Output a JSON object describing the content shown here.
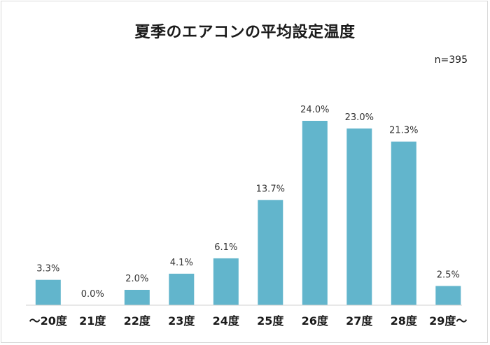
{
  "chart_data": {
    "type": "bar",
    "title": "夏季のエアコンの平均設定温度",
    "sample_size": "n=395",
    "categories": [
      "～20度",
      "21度",
      "22度",
      "23度",
      "24度",
      "25度",
      "26度",
      "27度",
      "28度",
      "29度～"
    ],
    "values": [
      3.3,
      0.0,
      2.0,
      4.1,
      6.1,
      13.7,
      24.0,
      23.0,
      21.3,
      2.5
    ],
    "data_labels": [
      "3.3%",
      "0.0%",
      "2.0%",
      "4.1%",
      "6.1%",
      "13.7%",
      "24.0%",
      "23.0%",
      "21.3%",
      "2.5%"
    ],
    "ylim": [
      0,
      26
    ],
    "xlabel": "",
    "ylabel": "",
    "grid": false,
    "legend": "none",
    "bar_color": "#62b5cc"
  }
}
